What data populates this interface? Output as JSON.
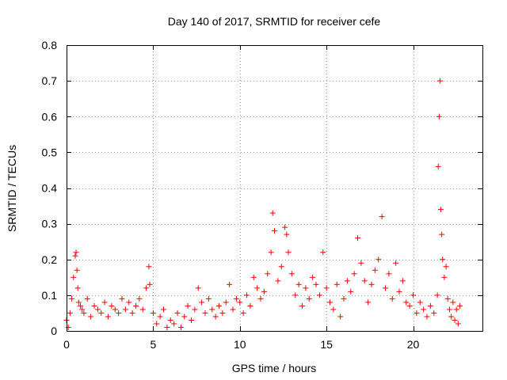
{
  "chart_data": {
    "type": "scatter",
    "title": "Day 140 of 2017, SRMTID for receiver cefe",
    "xlabel": "GPS time / hours",
    "ylabel": "SRMTID / TECUs",
    "xlim": [
      0,
      24
    ],
    "ylim": [
      0,
      0.8
    ],
    "xticks": [
      0,
      5,
      10,
      15,
      20
    ],
    "xtick_labels": [
      "0",
      "5",
      "10",
      "15",
      "20"
    ],
    "yticks": [
      0,
      0.1,
      0.2,
      0.3,
      0.4,
      0.5,
      0.6,
      0.7,
      0.8
    ],
    "ytick_labels": [
      "0",
      "0.1",
      "0.2",
      "0.3",
      "0.4",
      "0.5",
      "0.6",
      "0.7",
      "0.8"
    ],
    "grid": true,
    "marker": "+",
    "color": "#ff0000",
    "series": [
      {
        "name": "SRMTID",
        "x": [
          0.0,
          0.1,
          0.2,
          0.3,
          0.4,
          0.5,
          0.55,
          0.6,
          0.65,
          0.7,
          0.8,
          0.9,
          1.0,
          1.2,
          1.4,
          1.6,
          1.8,
          2.0,
          2.2,
          2.4,
          2.6,
          2.8,
          3.0,
          3.2,
          3.4,
          3.6,
          3.8,
          4.0,
          4.2,
          4.4,
          4.6,
          4.75,
          4.8,
          5.0,
          5.2,
          5.4,
          5.6,
          5.8,
          6.0,
          6.2,
          6.4,
          6.6,
          6.8,
          7.0,
          7.2,
          7.4,
          7.6,
          7.8,
          8.0,
          8.2,
          8.4,
          8.6,
          8.8,
          9.0,
          9.2,
          9.4,
          9.6,
          9.8,
          10.0,
          10.2,
          10.4,
          10.6,
          10.8,
          11.0,
          11.2,
          11.4,
          11.6,
          11.8,
          11.9,
          12.0,
          12.2,
          12.4,
          12.6,
          12.7,
          12.8,
          13.0,
          13.2,
          13.4,
          13.6,
          13.8,
          14.0,
          14.2,
          14.4,
          14.6,
          14.8,
          15.0,
          15.2,
          15.4,
          15.6,
          15.8,
          16.0,
          16.2,
          16.4,
          16.6,
          16.8,
          17.0,
          17.2,
          17.4,
          17.6,
          17.8,
          18.0,
          18.2,
          18.4,
          18.6,
          18.8,
          19.0,
          19.2,
          19.4,
          19.6,
          19.8,
          20.0,
          20.2,
          20.4,
          20.6,
          20.8,
          21.0,
          21.2,
          21.4,
          21.45,
          21.5,
          21.55,
          21.6,
          21.65,
          21.7,
          21.8,
          21.9,
          22.0,
          22.1,
          22.2,
          22.3,
          22.4,
          22.5,
          22.6,
          22.7
        ],
        "y": [
          0.03,
          0.01,
          0.05,
          0.09,
          0.15,
          0.21,
          0.22,
          0.17,
          0.12,
          0.08,
          0.07,
          0.06,
          0.05,
          0.09,
          0.04,
          0.07,
          0.06,
          0.05,
          0.08,
          0.04,
          0.07,
          0.06,
          0.05,
          0.09,
          0.06,
          0.08,
          0.05,
          0.07,
          0.09,
          0.06,
          0.12,
          0.18,
          0.13,
          0.05,
          0.02,
          0.04,
          0.06,
          0.01,
          0.03,
          0.02,
          0.05,
          0.01,
          0.04,
          0.07,
          0.03,
          0.06,
          0.12,
          0.08,
          0.05,
          0.09,
          0.06,
          0.04,
          0.07,
          0.05,
          0.08,
          0.13,
          0.06,
          0.09,
          0.08,
          0.05,
          0.1,
          0.07,
          0.15,
          0.12,
          0.09,
          0.11,
          0.16,
          0.22,
          0.33,
          0.28,
          0.14,
          0.18,
          0.29,
          0.27,
          0.22,
          0.16,
          0.1,
          0.13,
          0.07,
          0.12,
          0.09,
          0.15,
          0.13,
          0.1,
          0.22,
          0.12,
          0.08,
          0.06,
          0.13,
          0.04,
          0.09,
          0.14,
          0.11,
          0.16,
          0.26,
          0.19,
          0.14,
          0.08,
          0.13,
          0.17,
          0.2,
          0.32,
          0.12,
          0.16,
          0.09,
          0.19,
          0.11,
          0.14,
          0.08,
          0.07,
          0.1,
          0.05,
          0.08,
          0.06,
          0.04,
          0.07,
          0.05,
          0.1,
          0.46,
          0.6,
          0.7,
          0.34,
          0.27,
          0.2,
          0.15,
          0.18,
          0.09,
          0.06,
          0.04,
          0.08,
          0.03,
          0.06,
          0.02,
          0.07
        ]
      }
    ]
  }
}
